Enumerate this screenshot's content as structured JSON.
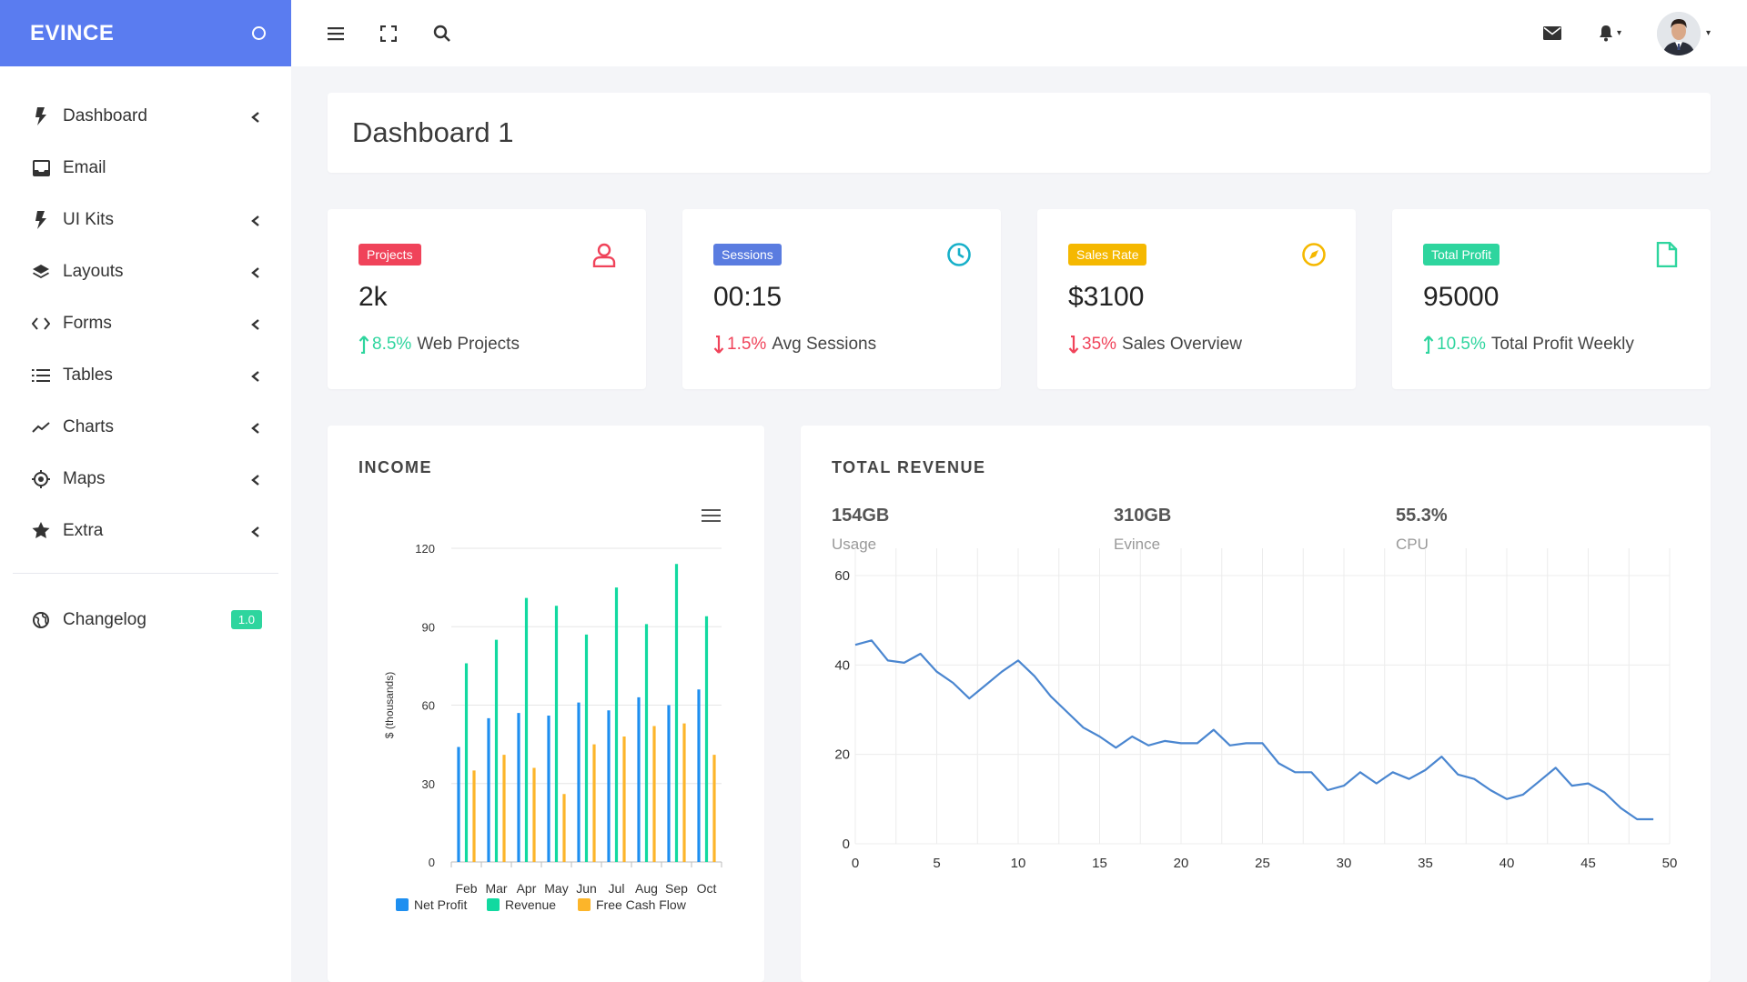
{
  "brand": {
    "name": "EVINCE"
  },
  "sidebar": {
    "items": [
      {
        "label": "Dashboard",
        "icon": "bolt-icon"
      },
      {
        "label": "Email",
        "icon": "inbox-icon"
      },
      {
        "label": "UI Kits",
        "icon": "bolt-icon"
      },
      {
        "label": "Layouts",
        "icon": "layers-icon"
      },
      {
        "label": "Forms",
        "icon": "code-icon"
      },
      {
        "label": "Tables",
        "icon": "list-icon"
      },
      {
        "label": "Charts",
        "icon": "trend-icon"
      },
      {
        "label": "Maps",
        "icon": "target-icon"
      },
      {
        "label": "Extra",
        "icon": "star-icon"
      }
    ],
    "changelog": {
      "label": "Changelog",
      "badge": "1.0"
    }
  },
  "header": {
    "page_title": "Dashboard 1"
  },
  "stats": [
    {
      "badge": "Projects",
      "badge_color": "#f0435a",
      "value": "2k",
      "pct": "8.5%",
      "label": "Web Projects",
      "trend": "up",
      "trend_color": "#2ed59e",
      "icon": "user-icon",
      "icon_color": "#f0435a"
    },
    {
      "badge": "Sessions",
      "badge_color": "#5a7ce0",
      "value": "00:15",
      "pct": "1.5%",
      "label": "Avg Sessions",
      "trend": "down",
      "trend_color": "#f0435a",
      "icon": "clock-icon",
      "icon_color": "#17b0c9"
    },
    {
      "badge": "Sales Rate",
      "badge_color": "#f5b800",
      "value": "$3100",
      "pct": "35%",
      "label": "Sales Overview",
      "trend": "down",
      "trend_color": "#f0435a",
      "icon": "compass-icon",
      "icon_color": "#f5b800"
    },
    {
      "badge": "Total Profit",
      "badge_color": "#2ed59e",
      "value": "95000",
      "pct": "10.5%",
      "label": "Total Profit Weekly",
      "trend": "up",
      "trend_color": "#2ed59e",
      "icon": "file-icon",
      "icon_color": "#2ed59e"
    }
  ],
  "income": {
    "title": "INCOME",
    "chart_data": {
      "type": "bar",
      "categories": [
        "Feb",
        "Mar",
        "Apr",
        "May",
        "Jun",
        "Jul",
        "Aug",
        "Sep",
        "Oct"
      ],
      "series": [
        {
          "name": "Net Profit",
          "color": "#1e8ff0",
          "values": [
            44,
            55,
            57,
            56,
            61,
            58,
            63,
            60,
            66
          ]
        },
        {
          "name": "Revenue",
          "color": "#12d9a0",
          "values": [
            76,
            85,
            101,
            98,
            87,
            105,
            91,
            114,
            94
          ]
        },
        {
          "name": "Free Cash Flow",
          "color": "#fcb52a",
          "values": [
            35,
            41,
            36,
            26,
            45,
            48,
            52,
            53,
            41
          ]
        }
      ],
      "ylabel": "$ (thousands)",
      "ylim": [
        0,
        120
      ],
      "yticks": [
        0,
        30,
        60,
        90,
        120
      ],
      "grid": true,
      "legend": "bottom"
    }
  },
  "revenue": {
    "title": "TOTAL REVENUE",
    "stats": [
      {
        "value": "154GB",
        "label": "Usage"
      },
      {
        "value": "310GB",
        "label": "Evince"
      },
      {
        "value": "55.3%",
        "label": "CPU"
      }
    ],
    "chart_data": {
      "type": "line",
      "x": [
        0,
        1,
        2,
        3,
        4,
        5,
        6,
        7,
        8,
        9,
        10,
        11,
        12,
        13,
        14,
        15,
        16,
        17,
        18,
        19,
        20,
        21,
        22,
        23,
        24,
        25,
        26,
        27,
        28,
        29,
        30,
        31,
        32,
        33,
        34,
        35,
        36,
        37,
        38,
        39,
        40,
        41,
        42,
        43,
        44,
        45,
        46,
        47,
        48,
        49
      ],
      "series": [
        {
          "color": "#4a86d0",
          "values": [
            44.5,
            45.5,
            41,
            40.5,
            42.5,
            38.5,
            36,
            32.5,
            35.5,
            38.5,
            41,
            37.5,
            33,
            29.5,
            26,
            24,
            21.5,
            24,
            22,
            23,
            22.5,
            22.5,
            25.5,
            22,
            22.5,
            22.5,
            18,
            16,
            16,
            12,
            13,
            16,
            13.5,
            16,
            14.5,
            16.5,
            19.5,
            15.5,
            14.5,
            12,
            10,
            11,
            14,
            17,
            13,
            13.5,
            11.5,
            8,
            5.5,
            5.5
          ]
        }
      ],
      "xlim": [
        0,
        50
      ],
      "ylim": [
        0,
        60
      ],
      "xticks": [
        0,
        5,
        10,
        15,
        20,
        25,
        30,
        35,
        40,
        45,
        50
      ],
      "yticks": [
        0,
        20,
        40,
        60
      ],
      "grid": true
    }
  }
}
